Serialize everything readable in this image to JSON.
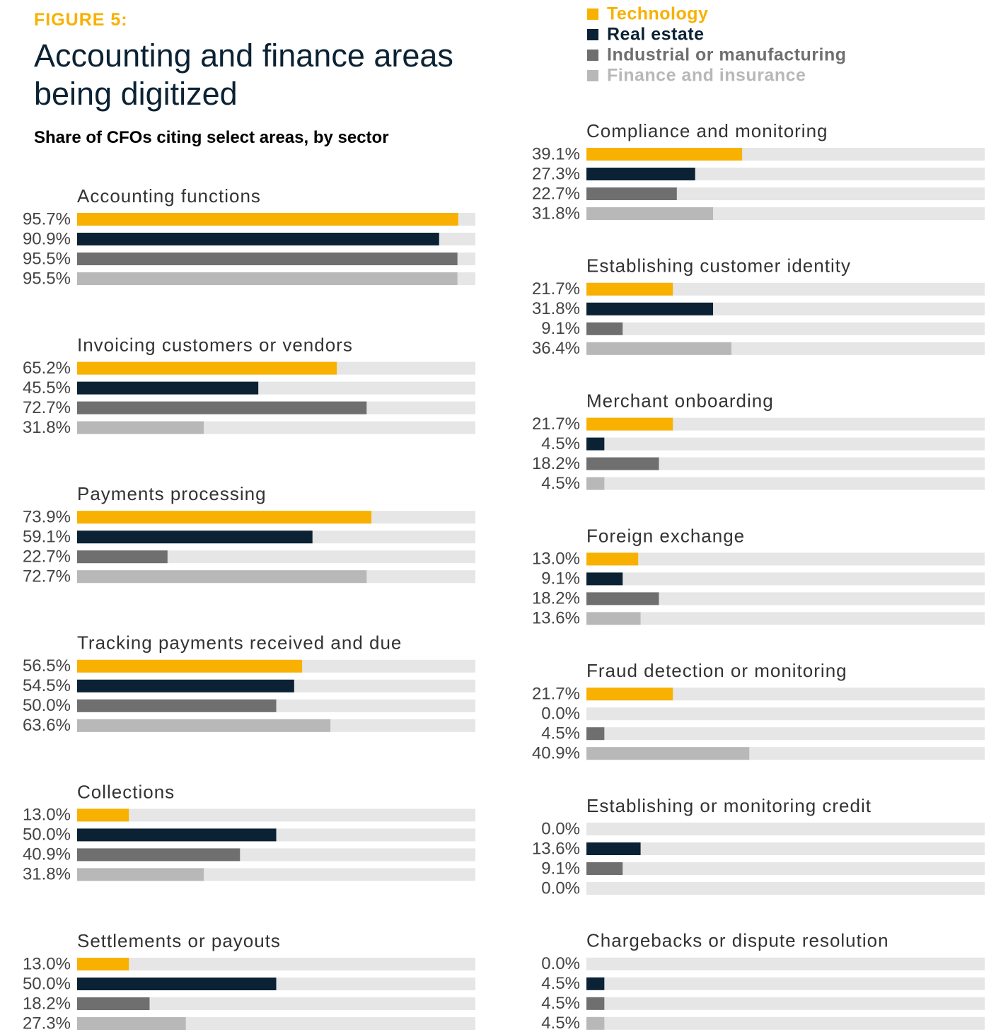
{
  "chart_data": {
    "type": "bar",
    "figure_label": "FIGURE 5:",
    "title": "Accounting and finance areas being digitized",
    "subtitle": "Share of CFOs citing select areas, by sector",
    "xlim": [
      0,
      100
    ],
    "track_color": "#e6e6e6",
    "categories": [
      "Accounting functions",
      "Invoicing customers or vendors",
      "Payments processing",
      "Tracking payments received and due",
      "Collections",
      "Settlements or payouts",
      "Compliance and monitoring",
      "Establishing customer identity",
      "Merchant onboarding",
      "Foreign exchange",
      "Fraud detection or monitoring",
      "Establishing or monitoring credit",
      "Chargebacks or dispute resolution"
    ],
    "series": [
      {
        "name": "Technology",
        "color": "#f8b100",
        "values": [
          95.7,
          65.2,
          73.9,
          56.5,
          13.0,
          13.0,
          39.1,
          21.7,
          21.7,
          13.0,
          21.7,
          0.0,
          0.0
        ],
        "value_labels": [
          "95.7%",
          "65.2%",
          "73.9%",
          "56.5%",
          "13.0%",
          "13.0%",
          "39.1%",
          "21.7%",
          "21.7%",
          "13.0%",
          "21.7%",
          "0.0%",
          "0.0%"
        ]
      },
      {
        "name": "Real estate",
        "color": "#0b2234",
        "values": [
          90.9,
          45.5,
          59.1,
          54.5,
          50.0,
          50.0,
          27.3,
          31.8,
          4.5,
          9.1,
          0.0,
          13.6,
          4.5
        ],
        "value_labels": [
          "90.9%",
          "45.5%",
          "59.1%",
          "54.5%",
          "50.0%",
          "50.0%",
          "27.3%",
          "31.8%",
          "4.5%",
          "9.1%",
          "0.0%",
          "13.6%",
          "4.5%"
        ]
      },
      {
        "name": "Industrial or manufacturing",
        "color": "#6f6f6f",
        "values": [
          95.5,
          72.7,
          22.7,
          50.0,
          40.9,
          18.2,
          22.7,
          9.1,
          18.2,
          18.2,
          4.5,
          9.1,
          4.5
        ],
        "value_labels": [
          "95.5%",
          "72.7%",
          "22.7%",
          "50.0%",
          "40.9%",
          "18.2%",
          "22.7%",
          "9.1%",
          "18.2%",
          "18.2%",
          "4.5%",
          "9.1%",
          "4.5%"
        ]
      },
      {
        "name": "Finance and insurance",
        "color": "#b8b8b8",
        "values": [
          95.5,
          31.8,
          72.7,
          63.6,
          31.8,
          27.3,
          31.8,
          36.4,
          4.5,
          13.6,
          40.9,
          0.0,
          4.5
        ],
        "value_labels": [
          "95.5%",
          "31.8%",
          "72.7%",
          "63.6%",
          "31.8%",
          "27.3%",
          "31.8%",
          "36.4%",
          "4.5%",
          "13.6%",
          "40.9%",
          "0.0%",
          "4.5%"
        ]
      }
    ]
  }
}
